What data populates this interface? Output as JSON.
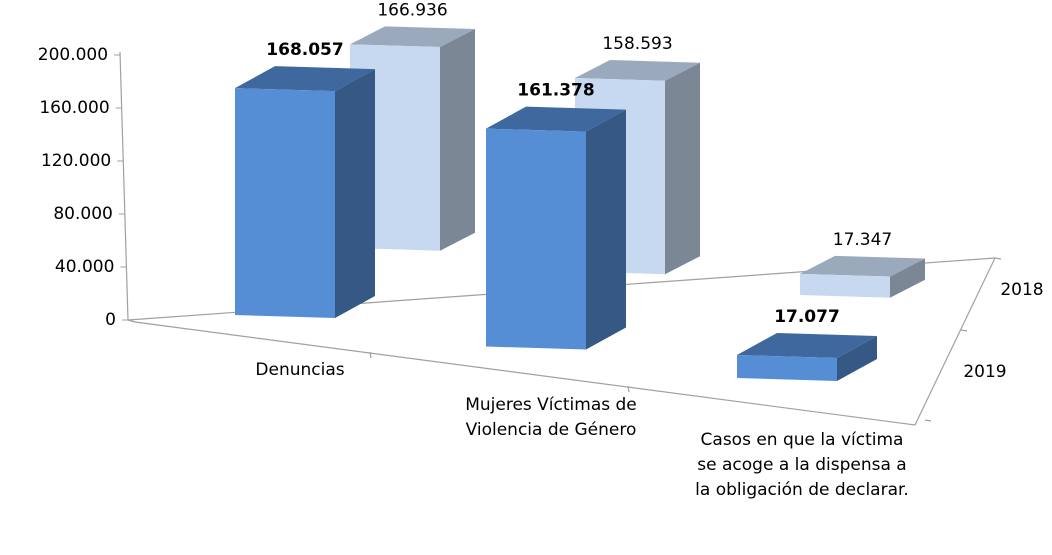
{
  "chart_data": {
    "type": "bar3d",
    "categories": [
      "Denuncias",
      "Mujeres Víctimas de Violencia de Género",
      "Casos en que la víctima se acoge a la dispensa a la obligación de declarar."
    ],
    "series": [
      {
        "name": "2019",
        "color": "#558ed5",
        "values": [
          168057,
          161378,
          17077
        ],
        "value_labels": [
          "168.057",
          "161.378",
          "17.077"
        ]
      },
      {
        "name": "2018",
        "color": "#c6d9f1",
        "values": [
          166936,
          158593,
          17347
        ],
        "value_labels": [
          "166.936",
          "158.593",
          "17.347"
        ]
      }
    ],
    "ylim": [
      0,
      200000
    ],
    "yticks": [
      0,
      {
        "value": 40000,
        "label": "40.000"
      },
      {
        "value": 80000,
        "label": "80.000"
      },
      {
        "value": 120000,
        "label": "120.000"
      },
      {
        "value": 160000,
        "label": "160.000"
      },
      {
        "value": 200000,
        "label": "200.000"
      }
    ]
  }
}
